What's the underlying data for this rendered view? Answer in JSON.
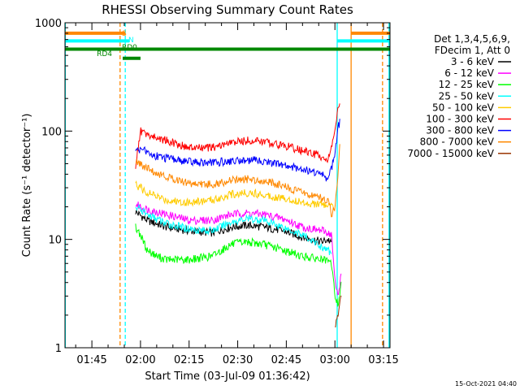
{
  "chart_data": {
    "type": "line",
    "title": "RHESSI Observing Summary Count Rates",
    "xlabel": "Start Time (03-Jul-09 01:36:42)",
    "ylabel": "Count Rate (s⁻¹ detector⁻¹)",
    "timestamp": "15-Oct-2021 04:40",
    "y_scale": "log",
    "ylim": [
      1,
      1000
    ],
    "xlim_minutes": [
      96.7,
      197.0
    ],
    "x_ticks": [
      {
        "label": "01:45",
        "min": 105
      },
      {
        "label": "02:00",
        "min": 120
      },
      {
        "label": "02:15",
        "min": 135
      },
      {
        "label": "02:30",
        "min": 150
      },
      {
        "label": "02:45",
        "min": 165
      },
      {
        "label": "03:00",
        "min": 180
      },
      {
        "label": "03:15",
        "min": 195
      }
    ],
    "y_ticks": [
      {
        "label": "1",
        "value": 1
      },
      {
        "label": "10",
        "value": 10
      },
      {
        "label": "100",
        "value": 100
      },
      {
        "label": "1000",
        "value": 1000
      }
    ],
    "legend_header": [
      "Det 1,3,4,5,6,9,",
      "FDecim 1, Att 0"
    ],
    "series": [
      {
        "name": "3 - 6 keV",
        "color": "#000000",
        "points": [
          [
            118.5,
            18
          ],
          [
            122,
            15
          ],
          [
            128,
            13
          ],
          [
            135,
            12
          ],
          [
            142,
            11.5
          ],
          [
            148,
            13
          ],
          [
            153,
            13.5
          ],
          [
            158,
            13
          ],
          [
            164,
            12
          ],
          [
            170,
            10.5
          ],
          [
            176,
            9.5
          ],
          [
            178,
            10
          ],
          [
            179,
            9
          ]
        ]
      },
      {
        "name": "6 - 12 keV",
        "color": "#ff00ff",
        "points": [
          [
            118.5,
            21
          ],
          [
            122,
            19
          ],
          [
            128,
            17
          ],
          [
            135,
            15
          ],
          [
            142,
            15
          ],
          [
            148,
            17
          ],
          [
            153,
            17.5
          ],
          [
            158,
            17
          ],
          [
            164,
            15.5
          ],
          [
            170,
            13
          ],
          [
            176,
            12
          ],
          [
            178,
            11.5
          ],
          [
            179,
            11
          ],
          [
            180,
            4
          ],
          [
            181,
            3
          ],
          [
            182,
            5
          ]
        ]
      },
      {
        "name": "12 - 25 keV",
        "color": "#00ff00",
        "points": [
          [
            118.5,
            13
          ],
          [
            120,
            11
          ],
          [
            122,
            8
          ],
          [
            125,
            7
          ],
          [
            128,
            6.5
          ],
          [
            135,
            6.5
          ],
          [
            142,
            7
          ],
          [
            148,
            9
          ],
          [
            153,
            9.5
          ],
          [
            158,
            9
          ],
          [
            164,
            8
          ],
          [
            170,
            7
          ],
          [
            176,
            6.5
          ],
          [
            179,
            6
          ],
          [
            180,
            3
          ],
          [
            181,
            2.5
          ],
          [
            182,
            4
          ]
        ]
      },
      {
        "name": "25 - 50 keV",
        "color": "#00ffff",
        "points": [
          [
            118.5,
            20
          ],
          [
            122,
            17
          ],
          [
            128,
            14
          ],
          [
            135,
            12.5
          ],
          [
            142,
            12
          ],
          [
            148,
            14.5
          ],
          [
            153,
            15.5
          ],
          [
            158,
            15
          ],
          [
            164,
            13
          ],
          [
            170,
            11
          ],
          [
            176,
            8.5
          ],
          [
            179,
            7.5
          ]
        ]
      },
      {
        "name": "50 - 100 keV",
        "color": "#ffcc00",
        "points": [
          [
            118.5,
            32
          ],
          [
            120,
            30
          ],
          [
            122,
            27
          ],
          [
            128,
            23
          ],
          [
            135,
            22
          ],
          [
            142,
            23
          ],
          [
            148,
            26
          ],
          [
            153,
            27
          ],
          [
            158,
            26
          ],
          [
            164,
            24
          ],
          [
            170,
            22
          ],
          [
            176,
            21
          ],
          [
            179,
            20
          ],
          [
            180,
            19
          ]
        ]
      },
      {
        "name": "100 - 300 keV",
        "color": "#ff0000",
        "points": [
          [
            118.5,
            48
          ],
          [
            120,
            100
          ],
          [
            122,
            92
          ],
          [
            128,
            82
          ],
          [
            135,
            70
          ],
          [
            142,
            70
          ],
          [
            148,
            78
          ],
          [
            153,
            82
          ],
          [
            158,
            80
          ],
          [
            164,
            74
          ],
          [
            170,
            66
          ],
          [
            176,
            58
          ],
          [
            178,
            55
          ],
          [
            180,
            100
          ],
          [
            181,
            160
          ],
          [
            181.5,
            180
          ]
        ]
      },
      {
        "name": "300 - 800 keV",
        "color": "#0000ff",
        "points": [
          [
            118.5,
            70
          ],
          [
            120,
            66
          ],
          [
            121,
            74
          ],
          [
            122,
            62
          ],
          [
            128,
            56
          ],
          [
            135,
            52
          ],
          [
            142,
            51
          ],
          [
            148,
            53
          ],
          [
            153,
            54
          ],
          [
            158,
            53
          ],
          [
            164,
            48
          ],
          [
            170,
            45
          ],
          [
            176,
            40
          ],
          [
            178,
            36
          ],
          [
            180,
            60
          ],
          [
            181,
            110
          ],
          [
            181.5,
            120
          ]
        ]
      },
      {
        "name": "800 - 7000 keV",
        "color": "#ff8800",
        "points": [
          [
            118.5,
            52
          ],
          [
            122,
            45
          ],
          [
            128,
            38
          ],
          [
            135,
            33
          ],
          [
            142,
            32
          ],
          [
            148,
            35
          ],
          [
            153,
            36
          ],
          [
            158,
            35
          ],
          [
            164,
            31
          ],
          [
            170,
            27
          ],
          [
            176,
            24
          ],
          [
            178,
            22
          ],
          [
            179,
            17
          ],
          [
            180,
            20
          ],
          [
            181,
            40
          ],
          [
            181.5,
            75
          ]
        ]
      },
      {
        "name": "7000 - 15000 keV",
        "color": "#993300",
        "points": [
          [
            180,
            1.5
          ],
          [
            181,
            2
          ],
          [
            182,
            3
          ]
        ]
      }
    ],
    "flags": [
      {
        "label": "S",
        "color": "#ff8800",
        "level": 800,
        "segments": [
          [
            96.7,
            115.3
          ],
          [
            185.0,
            197.0
          ]
        ]
      },
      {
        "label": "N",
        "color": "#00ffff",
        "level": 680,
        "segments": [
          [
            96.7,
            116.5
          ],
          [
            180.7,
            197.0
          ]
        ]
      },
      {
        "label": "RD0",
        "color": "#008800",
        "level": 570,
        "segments": [
          [
            96.7,
            197.0
          ]
        ]
      },
      {
        "label": "RD4",
        "color": "#008800",
        "level": 470,
        "segments": [
          [
            114.5,
            120.0
          ]
        ]
      }
    ],
    "vlines": [
      {
        "min": 96.8,
        "color": "#00ffff",
        "dashed": false
      },
      {
        "min": 113.7,
        "color": "#ff8800",
        "dashed": true
      },
      {
        "min": 115.3,
        "color": "#00ffff",
        "dashed": true
      },
      {
        "min": 180.7,
        "color": "#00ffff",
        "dashed": false
      },
      {
        "min": 185.0,
        "color": "#ff8800",
        "dashed": false
      },
      {
        "min": 194.7,
        "color": "#ff8800",
        "dashed": true
      },
      {
        "min": 196.7,
        "color": "#00ffff",
        "dashed": false
      }
    ]
  }
}
